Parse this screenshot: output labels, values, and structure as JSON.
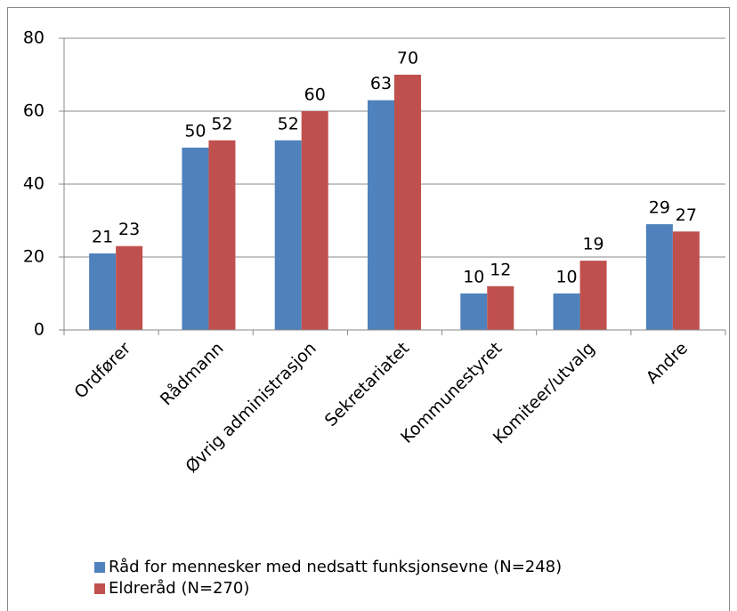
{
  "chart_data": {
    "type": "bar",
    "categories": [
      "Ordfører",
      "Rådmann",
      "Øvrig administrasjon",
      "Sekretariatet",
      "Kommunestyret",
      "Komiteer/utvalg",
      "Andre"
    ],
    "series": [
      {
        "name": "Råd for mennesker med nedsatt funksjonsevne (N=248)",
        "color": "#4f81bd",
        "values": [
          21,
          50,
          52,
          63,
          10,
          10,
          29
        ]
      },
      {
        "name": "Eldreråd (N=270)",
        "color": "#c0504d",
        "values": [
          23,
          52,
          60,
          70,
          12,
          19,
          27
        ]
      }
    ],
    "ylim": [
      0,
      80
    ],
    "yticks": [
      0,
      20,
      40,
      60,
      80
    ],
    "grid": true,
    "legend": "bottom"
  }
}
